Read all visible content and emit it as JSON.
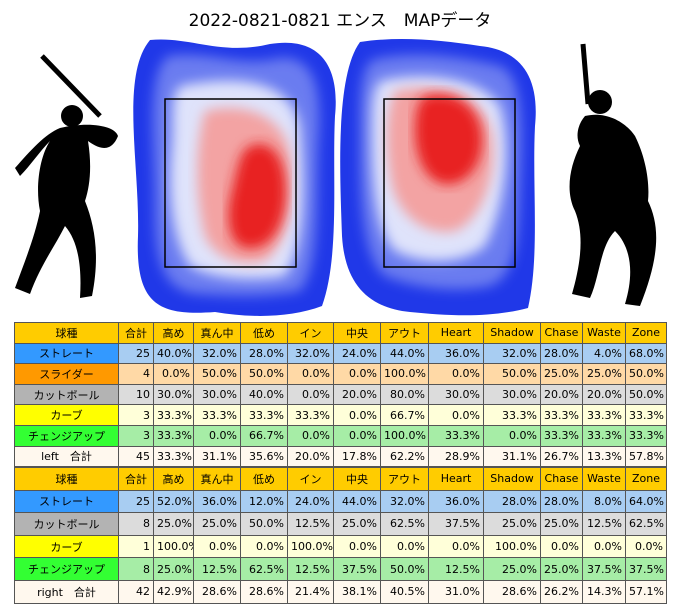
{
  "title": "2022-0821-0821 エンス　MAPデータ",
  "tables": [
    {
      "header": [
        "球種",
        "合計",
        "高め",
        "真ん中",
        "低め",
        "イン",
        "中央",
        "アウト",
        "Heart",
        "Shadow",
        "Chase",
        "Waste",
        "Zone"
      ],
      "rows": [
        {
          "color": "#3399ff",
          "tint": "#a8cdf2",
          "cells": [
            "ストレート",
            "25",
            "40.0%",
            "32.0%",
            "28.0%",
            "32.0%",
            "24.0%",
            "44.0%",
            "36.0%",
            "32.0%",
            "28.0%",
            "4.0%",
            "68.0%"
          ]
        },
        {
          "color": "#ff9900",
          "tint": "#ffd9a6",
          "cells": [
            "スライダー",
            "4",
            "0.0%",
            "50.0%",
            "50.0%",
            "0.0%",
            "0.0%",
            "100.0%",
            "0.0%",
            "50.0%",
            "25.0%",
            "25.0%",
            "50.0%"
          ]
        },
        {
          "color": "#b3b3b3",
          "tint": "#dcdcdc",
          "cells": [
            "カットボール",
            "10",
            "30.0%",
            "30.0%",
            "40.0%",
            "0.0%",
            "20.0%",
            "80.0%",
            "30.0%",
            "30.0%",
            "20.0%",
            "20.0%",
            "50.0%"
          ]
        },
        {
          "color": "#ffff00",
          "tint": "#ffffd9",
          "cells": [
            "カーブ",
            "3",
            "33.3%",
            "33.3%",
            "33.3%",
            "33.3%",
            "0.0%",
            "66.7%",
            "0.0%",
            "33.3%",
            "33.3%",
            "33.3%",
            "33.3%"
          ]
        },
        {
          "color": "#33ff33",
          "tint": "#a6eda6",
          "cells": [
            "チェンジアップ",
            "3",
            "33.3%",
            "0.0%",
            "66.7%",
            "0.0%",
            "0.0%",
            "100.0%",
            "33.3%",
            "0.0%",
            "33.3%",
            "33.3%",
            "33.3%"
          ]
        },
        {
          "color": "#fff8ee",
          "tint": "#fff8ee",
          "cells": [
            "left　合計",
            "45",
            "33.3%",
            "31.1%",
            "35.6%",
            "20.0%",
            "17.8%",
            "62.2%",
            "28.9%",
            "31.1%",
            "26.7%",
            "13.3%",
            "57.8%"
          ]
        }
      ]
    },
    {
      "header": [
        "球種",
        "合計",
        "高め",
        "真ん中",
        "低め",
        "イン",
        "中央",
        "アウト",
        "Heart",
        "Shadow",
        "Chase",
        "Waste",
        "Zone"
      ],
      "rows": [
        {
          "color": "#3399ff",
          "tint": "#a8cdf2",
          "cells": [
            "ストレート",
            "25",
            "52.0%",
            "36.0%",
            "12.0%",
            "24.0%",
            "44.0%",
            "32.0%",
            "36.0%",
            "28.0%",
            "28.0%",
            "8.0%",
            "64.0%"
          ]
        },
        {
          "color": "#b3b3b3",
          "tint": "#dcdcdc",
          "cells": [
            "カットボール",
            "8",
            "25.0%",
            "25.0%",
            "50.0%",
            "12.5%",
            "25.0%",
            "62.5%",
            "37.5%",
            "25.0%",
            "25.0%",
            "12.5%",
            "62.5%"
          ]
        },
        {
          "color": "#ffff00",
          "tint": "#ffffd9",
          "cells": [
            "カーブ",
            "1",
            "100.0%",
            "0.0%",
            "0.0%",
            "100.0%",
            "0.0%",
            "0.0%",
            "0.0%",
            "100.0%",
            "0.0%",
            "0.0%",
            "0.0%"
          ]
        },
        {
          "color": "#33ff33",
          "tint": "#a6eda6",
          "cells": [
            "チェンジアップ",
            "8",
            "25.0%",
            "12.5%",
            "62.5%",
            "12.5%",
            "37.5%",
            "50.0%",
            "12.5%",
            "25.0%",
            "25.0%",
            "37.5%",
            "37.5%"
          ]
        },
        {
          "color": "#fff8ee",
          "tint": "#fff8ee",
          "cells": [
            "right　合計",
            "42",
            "42.9%",
            "28.6%",
            "28.6%",
            "21.4%",
            "38.1%",
            "40.5%",
            "31.0%",
            "28.6%",
            "26.2%",
            "14.3%",
            "57.1%"
          ]
        }
      ]
    }
  ]
}
